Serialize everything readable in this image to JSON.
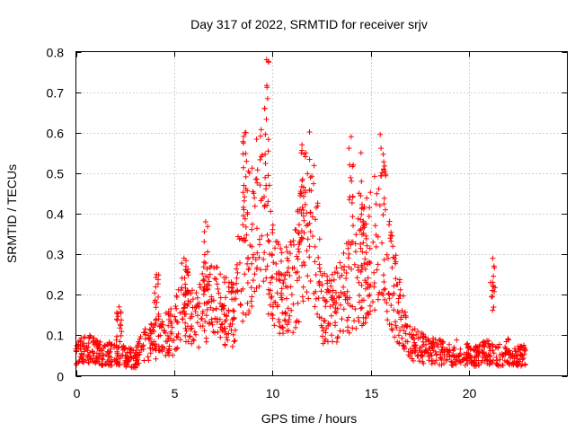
{
  "chart_data": {
    "type": "scatter",
    "title": "Day 317 of 2022, SRMTID for receiver srjv",
    "xlabel": "GPS time / hours",
    "ylabel": "SRMTID / TECUs",
    "xlim": [
      0,
      25
    ],
    "ylim": [
      0,
      0.8
    ],
    "xticks": [
      0,
      5,
      10,
      15,
      20
    ],
    "yticks": [
      0,
      0.1,
      0.2,
      0.3,
      0.4,
      0.5,
      0.6,
      0.7,
      0.8
    ],
    "xtick_labels": [
      "0",
      "5",
      "10",
      "15",
      "20"
    ],
    "ytick_labels": [
      "0",
      "0.1",
      "0.2",
      "0.3",
      "0.4",
      "0.5",
      "0.6",
      "0.7",
      "0.8"
    ],
    "grid": true,
    "marker": "+",
    "series": [
      {
        "name": "srjv",
        "color": "#ff0000",
        "envelope_note": "Approximate envelope of the dense point cloud (hour, typical SRMTID)",
        "points": [
          {
            "x": 0.0,
            "y": 0.05
          },
          {
            "x": 0.5,
            "y": 0.07
          },
          {
            "x": 1.0,
            "y": 0.06
          },
          {
            "x": 1.5,
            "y": 0.05
          },
          {
            "x": 2.0,
            "y": 0.06
          },
          {
            "x": 2.2,
            "y": 0.17
          },
          {
            "x": 2.5,
            "y": 0.05
          },
          {
            "x": 3.0,
            "y": 0.04
          },
          {
            "x": 3.5,
            "y": 0.08
          },
          {
            "x": 4.0,
            "y": 0.09
          },
          {
            "x": 4.1,
            "y": 0.25
          },
          {
            "x": 4.5,
            "y": 0.1
          },
          {
            "x": 5.0,
            "y": 0.11
          },
          {
            "x": 5.5,
            "y": 0.2
          },
          {
            "x": 5.6,
            "y": 0.27
          },
          {
            "x": 6.0,
            "y": 0.13
          },
          {
            "x": 6.5,
            "y": 0.18
          },
          {
            "x": 6.6,
            "y": 0.38
          },
          {
            "x": 7.0,
            "y": 0.2
          },
          {
            "x": 7.5,
            "y": 0.16
          },
          {
            "x": 8.0,
            "y": 0.15
          },
          {
            "x": 8.5,
            "y": 0.3
          },
          {
            "x": 8.6,
            "y": 0.6
          },
          {
            "x": 9.0,
            "y": 0.35
          },
          {
            "x": 9.5,
            "y": 0.45
          },
          {
            "x": 9.7,
            "y": 0.78
          },
          {
            "x": 10.0,
            "y": 0.25
          },
          {
            "x": 10.5,
            "y": 0.2
          },
          {
            "x": 11.0,
            "y": 0.22
          },
          {
            "x": 11.5,
            "y": 0.57
          },
          {
            "x": 12.0,
            "y": 0.42
          },
          {
            "x": 12.5,
            "y": 0.18
          },
          {
            "x": 13.0,
            "y": 0.16
          },
          {
            "x": 13.5,
            "y": 0.2
          },
          {
            "x": 14.0,
            "y": 0.59
          },
          {
            "x": 14.5,
            "y": 0.55
          },
          {
            "x": 15.0,
            "y": 0.3
          },
          {
            "x": 15.5,
            "y": 0.42
          },
          {
            "x": 16.0,
            "y": 0.25
          },
          {
            "x": 16.5,
            "y": 0.15
          },
          {
            "x": 17.0,
            "y": 0.08
          },
          {
            "x": 17.5,
            "y": 0.07
          },
          {
            "x": 18.0,
            "y": 0.06
          },
          {
            "x": 18.5,
            "y": 0.06
          },
          {
            "x": 19.0,
            "y": 0.05
          },
          {
            "x": 19.5,
            "y": 0.06
          },
          {
            "x": 20.0,
            "y": 0.05
          },
          {
            "x": 20.5,
            "y": 0.05
          },
          {
            "x": 21.0,
            "y": 0.06
          },
          {
            "x": 21.2,
            "y": 0.29
          },
          {
            "x": 21.5,
            "y": 0.05
          },
          {
            "x": 22.0,
            "y": 0.06
          },
          {
            "x": 22.5,
            "y": 0.05
          },
          {
            "x": 22.9,
            "y": 0.05
          }
        ]
      }
    ]
  }
}
